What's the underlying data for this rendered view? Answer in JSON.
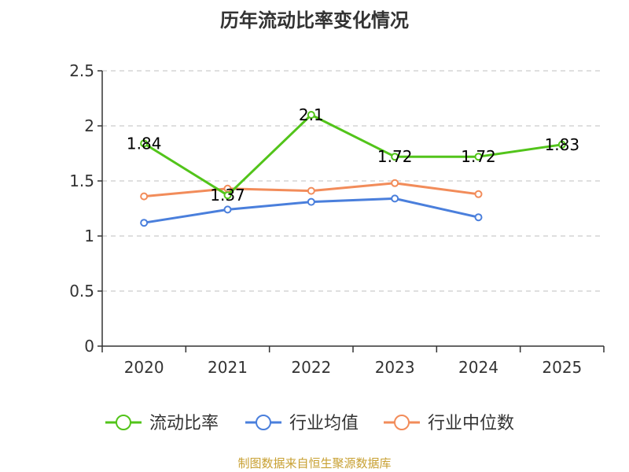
{
  "chart_data": {
    "type": "line",
    "title": "历年流动比率变化情况",
    "categories": [
      "2020",
      "2021",
      "2022",
      "2023",
      "2024",
      "2025"
    ],
    "yticks": [
      "0",
      "0.5",
      "1",
      "1.5",
      "2",
      "2.5"
    ],
    "ylim": [
      0,
      2.5
    ],
    "grid": true,
    "legend_position": "bottom",
    "series": [
      {
        "name": "流动比率",
        "color": "#52c41a",
        "values": [
          1.84,
          1.37,
          2.1,
          1.72,
          1.72,
          1.83
        ],
        "labels": [
          "1.84",
          "1.37",
          "2.1",
          "1.72",
          "1.72",
          "1.83"
        ]
      },
      {
        "name": "行业均值",
        "color": "#4a7fdc",
        "values": [
          1.12,
          1.24,
          1.31,
          1.34,
          1.17,
          null
        ]
      },
      {
        "name": "行业中位数",
        "color": "#f28c5a",
        "values": [
          1.36,
          1.43,
          1.41,
          1.48,
          1.38,
          null
        ]
      }
    ]
  },
  "footer": {
    "source": "制图数据来自恒生聚源数据库",
    "source_color": "#c8a032"
  }
}
